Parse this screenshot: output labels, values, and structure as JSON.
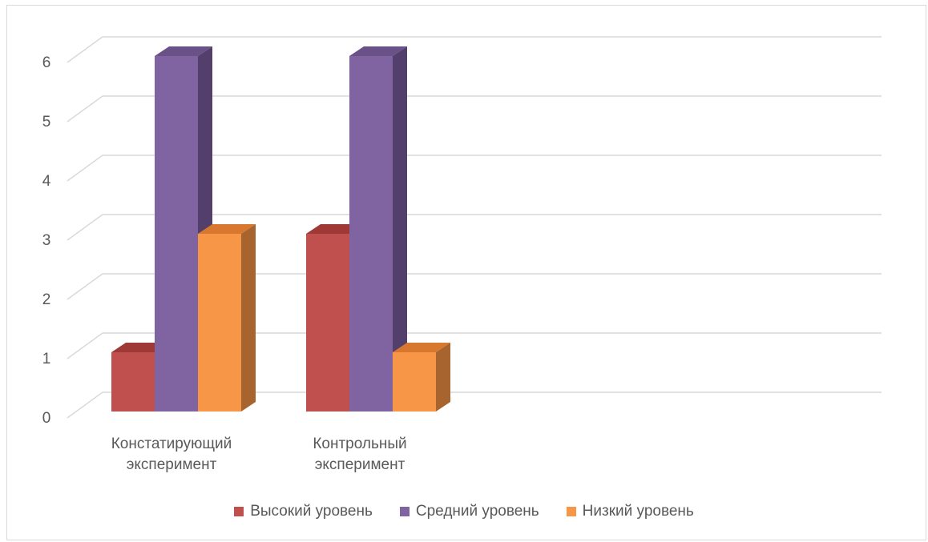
{
  "chart_data": {
    "type": "bar",
    "style": "3d-clustered-column",
    "categories": [
      "Констатирующий эксперимент",
      "Контрольный эксперимент"
    ],
    "category_lines": [
      [
        "Констатирующий",
        "эксперимент"
      ],
      [
        "Контрольный",
        "эксперимент"
      ]
    ],
    "series": [
      {
        "name": "Высокий уровень",
        "values": [
          1,
          3
        ],
        "color": "#C0504D",
        "top_color": "#9E3936",
        "side_color": "#8C3230"
      },
      {
        "name": "Средний уровень",
        "values": [
          6,
          6
        ],
        "color": "#8064A2",
        "top_color": "#6A5188",
        "side_color": "#533F6B"
      },
      {
        "name": "Низкий уровень",
        "values": [
          3,
          1
        ],
        "color": "#F79646",
        "top_color": "#D8782E",
        "side_color": "#A8642E"
      }
    ],
    "y_ticks": [
      "0",
      "1",
      "2",
      "3",
      "4",
      "5",
      "6"
    ],
    "ylim": [
      0,
      6
    ],
    "grid": true,
    "grid_color": "#d9d9d9",
    "legend_position": "bottom"
  }
}
